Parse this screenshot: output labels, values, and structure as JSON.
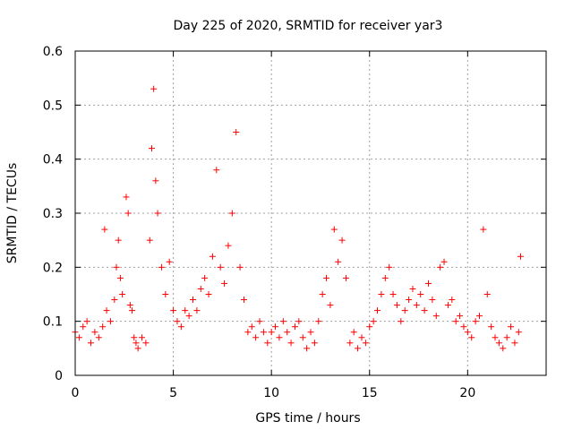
{
  "chart_data": {
    "type": "scatter",
    "title": "Day 225 of 2020, SRMTID for receiver yar3",
    "xlabel": "GPS time / hours",
    "ylabel": "SRMTID / TECUs",
    "xlim": [
      0,
      24
    ],
    "ylim": [
      0,
      0.6
    ],
    "xticks": [
      0,
      5,
      10,
      15,
      20
    ],
    "xtick_labels": [
      "0",
      "5",
      "10",
      "15",
      "20"
    ],
    "yticks": [
      0,
      0.1,
      0.2,
      0.3,
      0.4,
      0.5,
      0.6
    ],
    "ytick_labels": [
      "0",
      "0.1",
      "0.2",
      "0.3",
      "0.4",
      "0.5",
      "0.6"
    ],
    "grid": true,
    "marker": "+",
    "color": "#ff0000",
    "series": [
      {
        "name": "SRMTID",
        "x": [
          0.0,
          0.2,
          0.4,
          0.6,
          0.8,
          1.0,
          1.2,
          1.4,
          1.5,
          1.6,
          1.8,
          2.0,
          2.1,
          2.2,
          2.3,
          2.4,
          2.6,
          2.7,
          2.8,
          2.9,
          3.0,
          3.1,
          3.2,
          3.4,
          3.6,
          3.8,
          3.9,
          4.0,
          4.1,
          4.2,
          4.4,
          4.6,
          4.8,
          5.0,
          5.2,
          5.4,
          5.6,
          5.8,
          6.0,
          6.2,
          6.4,
          6.6,
          6.8,
          7.0,
          7.2,
          7.4,
          7.6,
          7.8,
          8.0,
          8.2,
          8.4,
          8.6,
          8.8,
          9.0,
          9.2,
          9.4,
          9.6,
          9.8,
          10.0,
          10.2,
          10.4,
          10.6,
          10.8,
          11.0,
          11.2,
          11.4,
          11.6,
          11.8,
          12.0,
          12.2,
          12.4,
          12.6,
          12.8,
          13.0,
          13.2,
          13.4,
          13.6,
          13.8,
          14.0,
          14.2,
          14.4,
          14.6,
          14.8,
          15.0,
          15.2,
          15.4,
          15.6,
          15.8,
          16.0,
          16.2,
          16.4,
          16.6,
          16.8,
          17.0,
          17.2,
          17.4,
          17.6,
          17.8,
          18.0,
          18.2,
          18.4,
          18.6,
          18.8,
          19.0,
          19.2,
          19.4,
          19.6,
          19.8,
          20.0,
          20.2,
          20.4,
          20.6,
          20.8,
          21.0,
          21.2,
          21.4,
          21.6,
          21.8,
          22.0,
          22.2,
          22.4,
          22.6,
          22.7
        ],
        "y": [
          0.08,
          0.07,
          0.09,
          0.1,
          0.06,
          0.08,
          0.07,
          0.09,
          0.27,
          0.12,
          0.1,
          0.14,
          0.2,
          0.25,
          0.18,
          0.15,
          0.33,
          0.3,
          0.13,
          0.12,
          0.07,
          0.06,
          0.05,
          0.07,
          0.06,
          0.25,
          0.42,
          0.53,
          0.36,
          0.3,
          0.2,
          0.15,
          0.21,
          0.12,
          0.1,
          0.09,
          0.12,
          0.11,
          0.14,
          0.12,
          0.16,
          0.18,
          0.15,
          0.22,
          0.38,
          0.2,
          0.17,
          0.24,
          0.3,
          0.45,
          0.2,
          0.14,
          0.08,
          0.09,
          0.07,
          0.1,
          0.08,
          0.06,
          0.08,
          0.09,
          0.07,
          0.1,
          0.08,
          0.06,
          0.09,
          0.1,
          0.07,
          0.05,
          0.08,
          0.06,
          0.1,
          0.15,
          0.18,
          0.13,
          0.27,
          0.21,
          0.25,
          0.18,
          0.06,
          0.08,
          0.05,
          0.07,
          0.06,
          0.09,
          0.1,
          0.12,
          0.15,
          0.18,
          0.2,
          0.15,
          0.13,
          0.1,
          0.12,
          0.14,
          0.16,
          0.13,
          0.15,
          0.12,
          0.17,
          0.14,
          0.11,
          0.2,
          0.21,
          0.13,
          0.14,
          0.1,
          0.11,
          0.09,
          0.08,
          0.07,
          0.1,
          0.11,
          0.27,
          0.15,
          0.09,
          0.07,
          0.06,
          0.05,
          0.07,
          0.09,
          0.06,
          0.08,
          0.22
        ]
      }
    ]
  }
}
